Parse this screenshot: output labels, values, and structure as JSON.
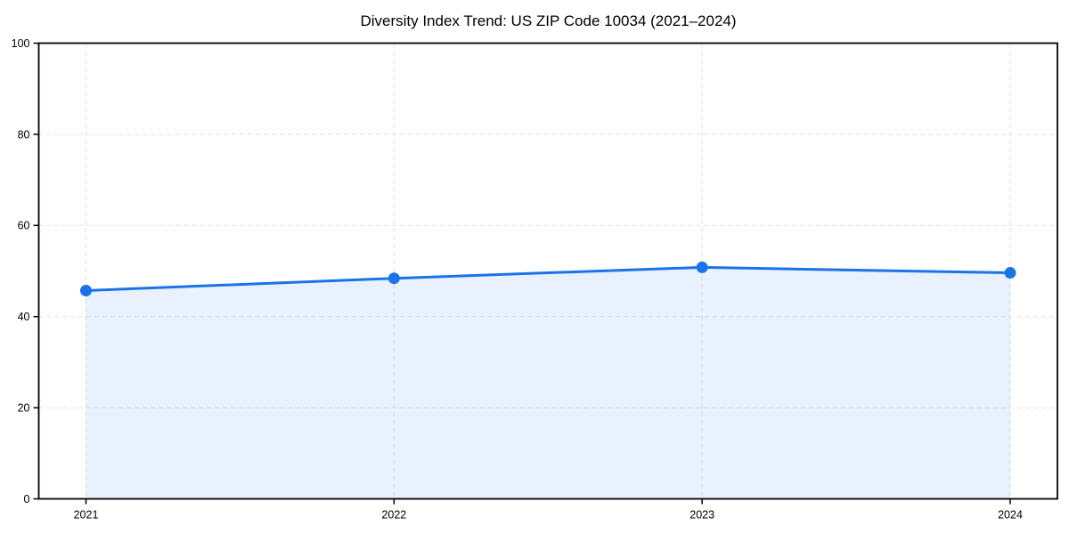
{
  "chart_data": {
    "type": "area",
    "title": "Diversity Index Trend: US ZIP Code 10034 (2021–2024)",
    "categories": [
      "2021",
      "2022",
      "2023",
      "2024"
    ],
    "values": [
      45.7,
      48.4,
      50.8,
      49.6
    ],
    "xlabel": "",
    "ylabel": "",
    "ylim": [
      0,
      100
    ],
    "yticks": [
      0,
      20,
      40,
      60,
      80,
      100
    ],
    "grid": "dashed",
    "legend": "none",
    "colors": {
      "line": "#1a73e8",
      "marker": "#1a73e8",
      "fill": "rgba(26,115,232,0.10)",
      "gridline": "#e0e0e0",
      "spine": "#000000",
      "tick_text": "#000000",
      "background": "#ffffff"
    }
  }
}
